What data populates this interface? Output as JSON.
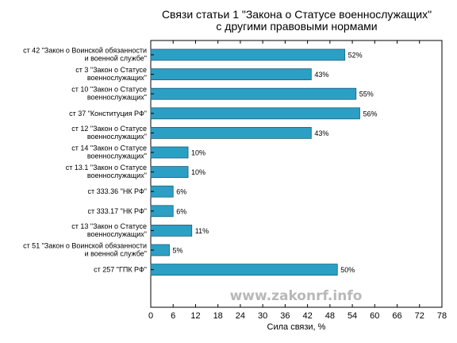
{
  "chart_data": {
    "type": "bar",
    "orientation": "horizontal",
    "title": [
      "Связи статьи 1 \"Закона о Статусе военнослужащих\"",
      "с другими правовыми нормами"
    ],
    "xlabel": "Сила связи, %",
    "ylabel": "",
    "xlim": [
      0,
      78
    ],
    "xticks": [
      0,
      6,
      12,
      18,
      24,
      30,
      36,
      42,
      48,
      54,
      60,
      66,
      72,
      78
    ],
    "categories": [
      [
        "ст 42 \"Закон о Воинской обязанности",
        "и военной службе\""
      ],
      [
        "ст 3 \"Закон о Статусе",
        "военнослужащих\""
      ],
      [
        "ст 10 \"Закон о Статусе",
        "военнослужащих\""
      ],
      [
        "ст 37 \"Конституция РФ\""
      ],
      [
        "ст 12 \"Закон о Статусе",
        "военнослужащих\""
      ],
      [
        "ст 14 \"Закон о Статусе",
        "военнослужащих\""
      ],
      [
        "ст 13.1 \"Закон о Статусе",
        "военнослужащих\""
      ],
      [
        "ст 333.36 \"НК РФ\""
      ],
      [
        "ст 333.17 \"НК РФ\""
      ],
      [
        "ст 13 \"Закон о Статусе",
        "военнослужащих\""
      ],
      [
        "ст 51 \"Закон о Воинской обязанности",
        "и военной службе\""
      ],
      [
        "ст 257 \"ГПК РФ\""
      ]
    ],
    "values": [
      52,
      43,
      55,
      56,
      43,
      10,
      10,
      6,
      6,
      11,
      5,
      50
    ],
    "value_labels": [
      "52%",
      "43%",
      "55%",
      "56%",
      "43%",
      "10%",
      "10%",
      "6%",
      "6%",
      "11%",
      "5%",
      "50%"
    ],
    "bar_color": "#2c9fc4",
    "bar_edge_color": "#1a5f78",
    "grid": false,
    "legend": "none"
  },
  "watermark": "www.zakonrf.info"
}
